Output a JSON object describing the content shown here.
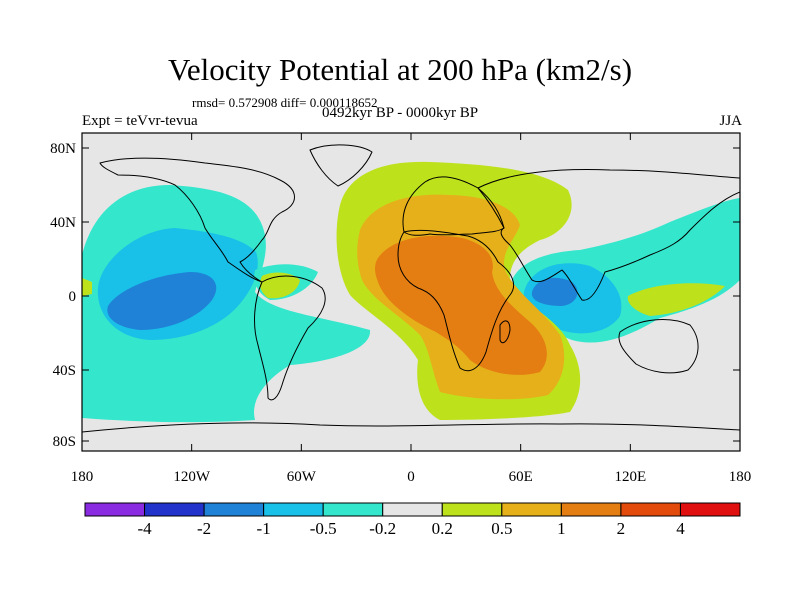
{
  "header": {
    "title": "Velocity Potential at 200 hPa (km2/s)",
    "stats": "rmsd= 0.572908 diff= 0.000118652",
    "experiment": "Expt = teVvr-tevua",
    "period": "0492kyr BP - 0000kyr BP",
    "season": "JJA"
  },
  "map": {
    "lat_labels": [
      "80N",
      "40N",
      "0",
      "40S",
      "80S"
    ],
    "lon_labels": [
      "180",
      "120W",
      "60W",
      "0",
      "60E",
      "120E",
      "180"
    ],
    "background_color": "#e6e6e6"
  },
  "colorbar": {
    "colors": [
      "#8a2be2",
      "#2233cc",
      "#1f82d6",
      "#19c0e8",
      "#33e6cc",
      "#e6e6e6",
      "#bde21c",
      "#e6b01a",
      "#e47d12",
      "#e34b0c",
      "#e01010"
    ],
    "labels": [
      "-4",
      "-2",
      "-1",
      "-0.5",
      "-0.2",
      "0.2",
      "0.5",
      "1",
      "2",
      "4"
    ]
  }
}
